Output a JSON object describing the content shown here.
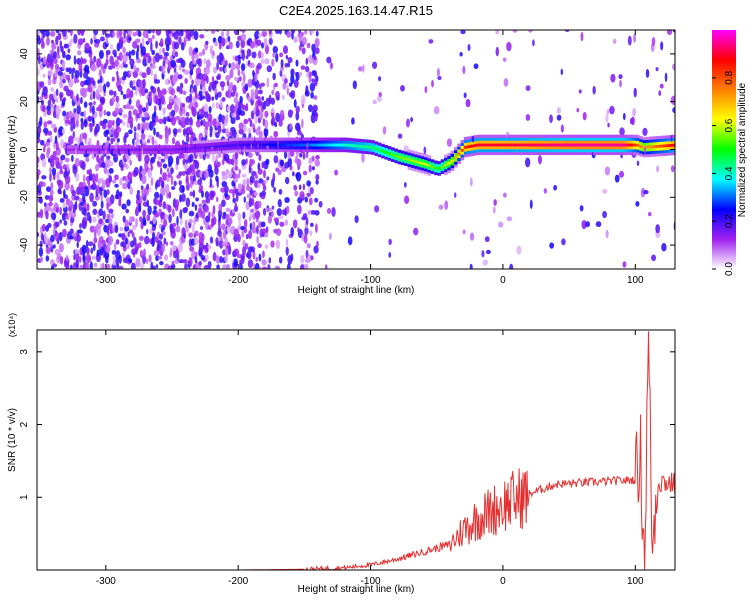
{
  "title": "C2E4.2025.163.14.47.R15",
  "chart_data": [
    {
      "type": "heatmap",
      "xlabel": "Height of straight line (km)",
      "ylabel": "Frequency (Hz)",
      "xlim": [
        -352,
        130
      ],
      "ylim": [
        -50,
        50
      ],
      "xticks": [
        -300,
        -200,
        -100,
        0,
        100
      ],
      "yticks": [
        -40,
        -20,
        0,
        20,
        40
      ],
      "colorbar": {
        "label": "Normalized spectral amplitude",
        "range": [
          0.0,
          1.0
        ],
        "ticks": [
          "0.0",
          "0.2",
          "0.4",
          "0.6",
          "0.8"
        ],
        "colors": [
          "#ffffff",
          "#a020f0",
          "#0000ff",
          "#00ffff",
          "#00ff00",
          "#ffff00",
          "#ff8000",
          "#ff0000",
          "#ff00ff"
        ]
      },
      "ridge": {
        "x": [
          -330,
          -250,
          -200,
          -150,
          -120,
          -100,
          -80,
          -60,
          -50,
          -40,
          -30,
          -20,
          0,
          50,
          90,
          100,
          105,
          130
        ],
        "y": [
          0,
          0,
          2,
          2,
          2,
          1,
          -3,
          -6,
          -8,
          -5,
          1,
          2,
          2,
          2,
          2,
          2,
          1,
          2
        ],
        "amplitude": [
          0.12,
          0.15,
          0.2,
          0.3,
          0.4,
          0.45,
          0.55,
          0.6,
          0.5,
          0.65,
          0.85,
          0.9,
          0.9,
          0.95,
          0.95,
          0.8,
          0.7,
          0.9
        ]
      },
      "noise_region_x": [
        -352,
        -140
      ]
    },
    {
      "type": "line",
      "xlabel": "Height of straight line (km)",
      "ylabel": "SNR (10 * v/v)",
      "y_multiplier": "(x10⁴)",
      "xlim": [
        -352,
        130
      ],
      "ylim": [
        0,
        3.3
      ],
      "xticks": [
        -300,
        -200,
        -100,
        0,
        100
      ],
      "yticks": [
        1,
        2,
        3
      ],
      "series": [
        {
          "color": "#e53030",
          "x": [
            -352,
            -200,
            -150,
            -120,
            -100,
            -80,
            -60,
            -40,
            -30,
            -20,
            -10,
            0,
            20,
            40,
            60,
            80,
            100,
            104,
            107,
            110,
            113,
            116,
            120,
            130
          ],
          "y": [
            0.0,
            0.0,
            0.01,
            0.03,
            0.07,
            0.15,
            0.25,
            0.35,
            0.55,
            0.7,
            0.8,
            0.9,
            1.05,
            1.18,
            1.2,
            1.22,
            1.24,
            1.6,
            0.05,
            3.2,
            0.2,
            1.2,
            1.22,
            1.18
          ]
        }
      ]
    }
  ]
}
